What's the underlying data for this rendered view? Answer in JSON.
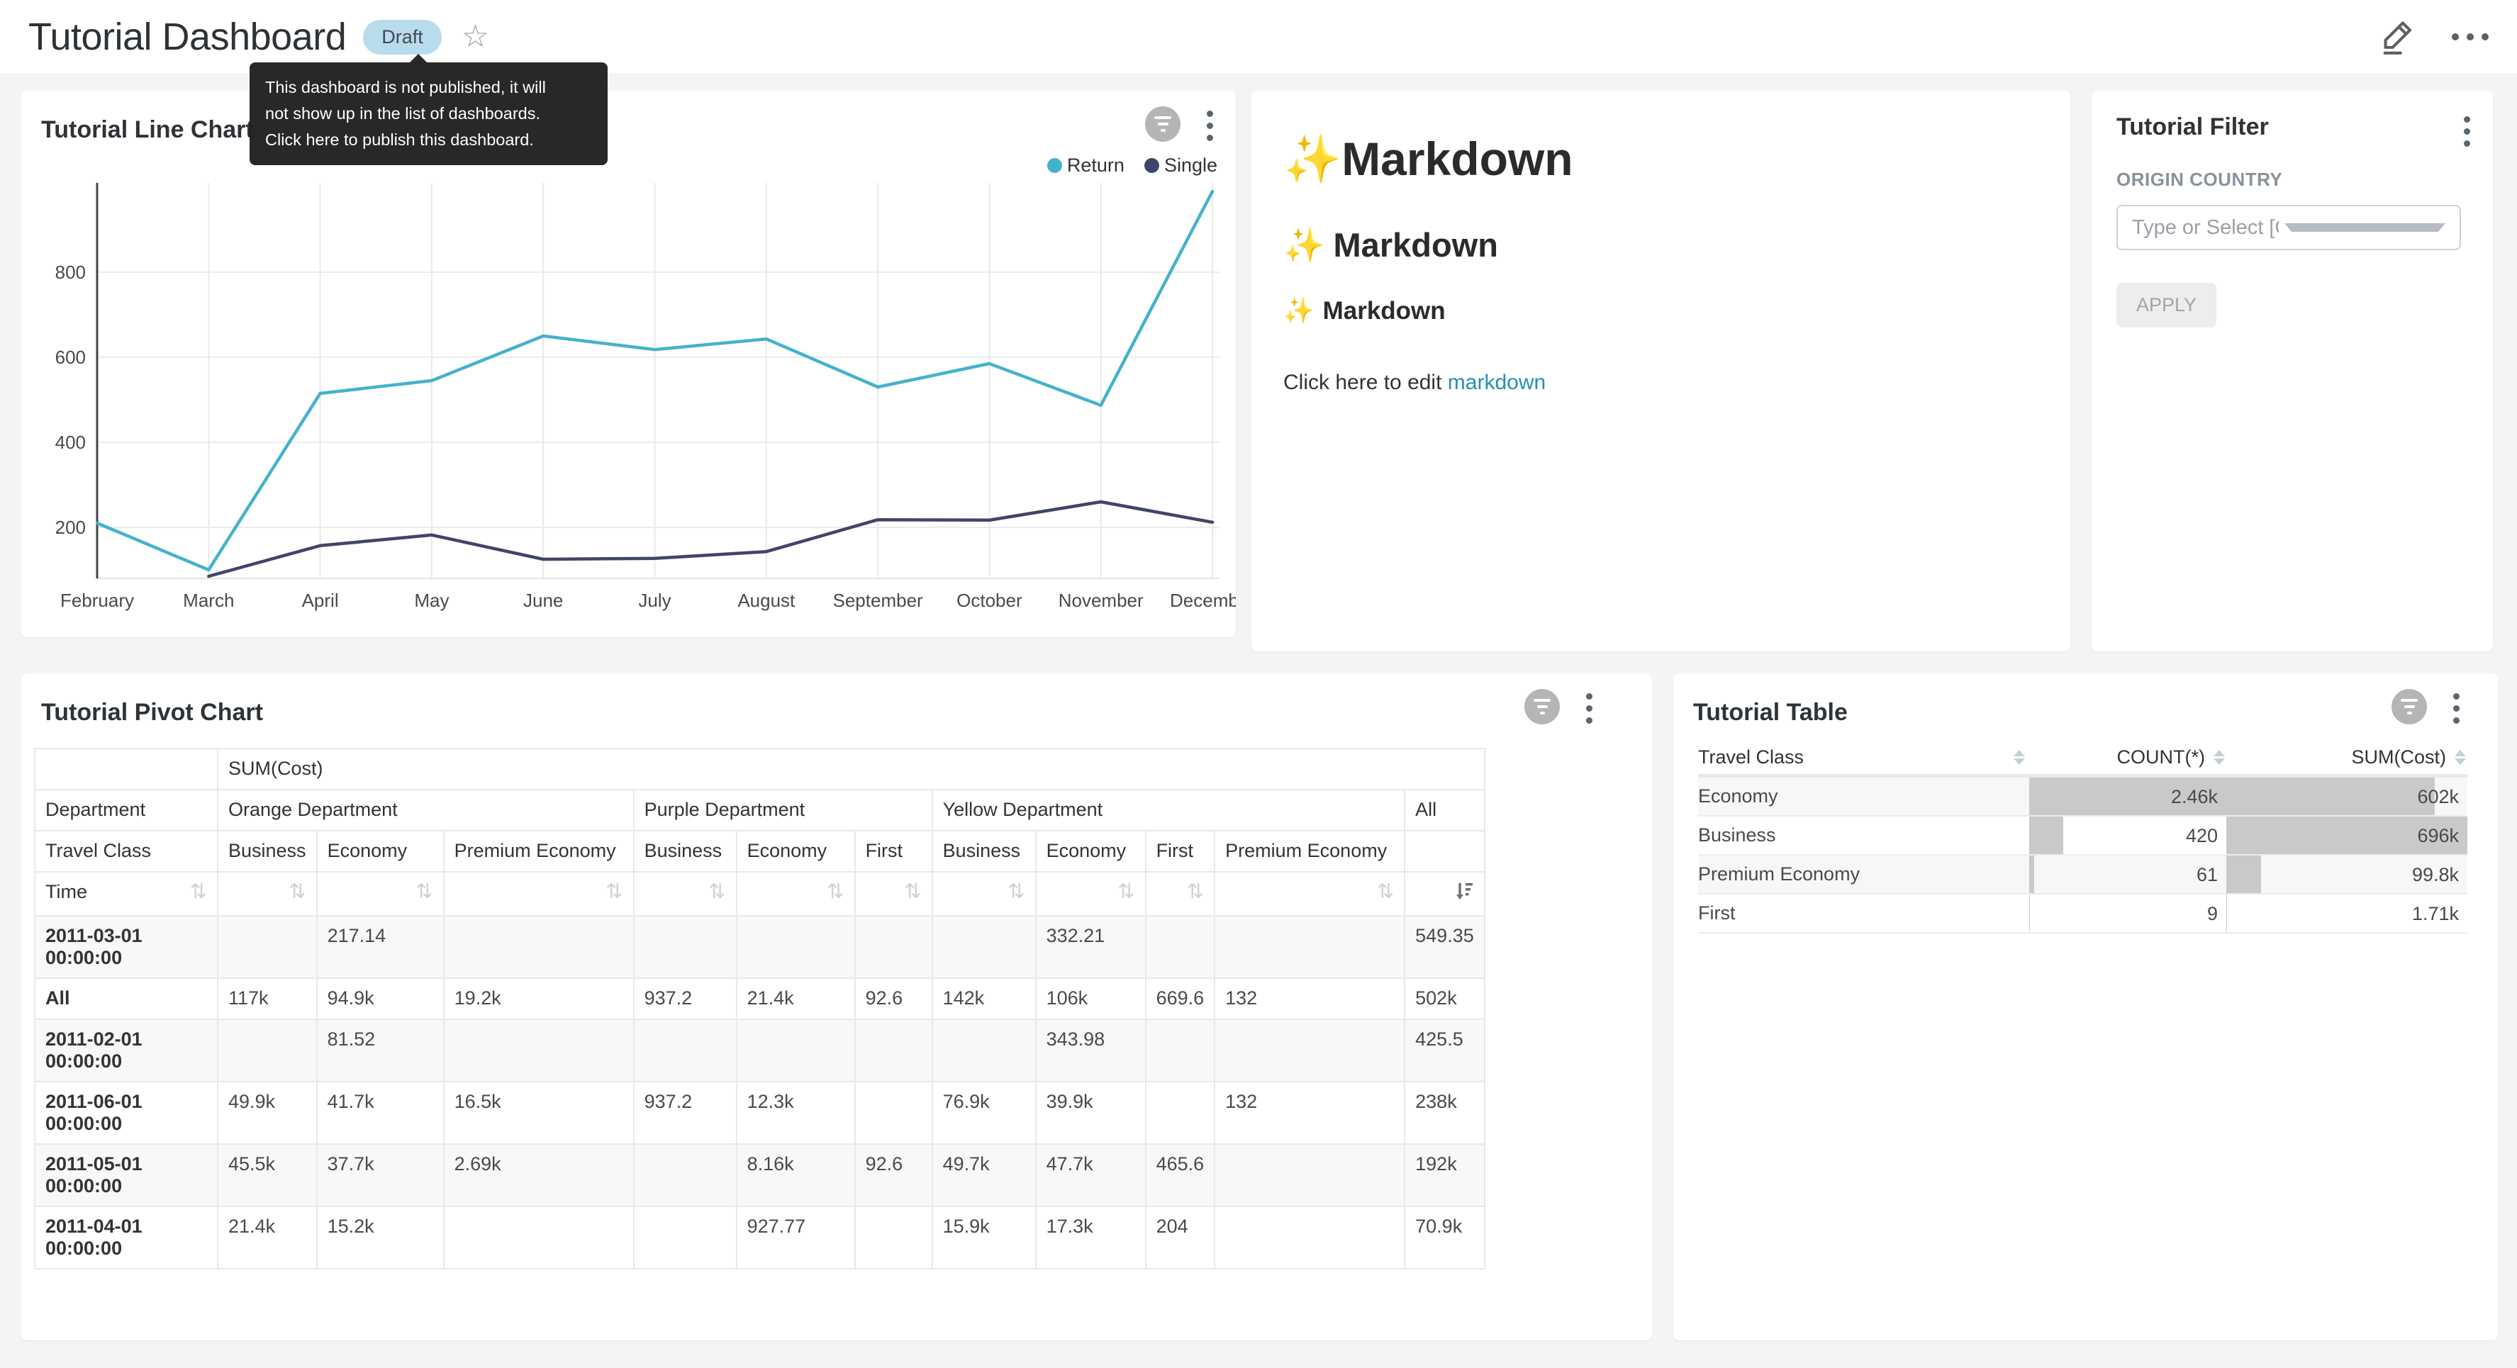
{
  "header": {
    "title": "Tutorial Dashboard",
    "badge": "Draft",
    "star_icon": "☆",
    "tooltip_lines": [
      "This dashboard is not published, it will",
      "not show up in the list of dashboards.",
      "Click here to publish this dashboard."
    ]
  },
  "line_chart_panel": {
    "title": "Tutorial Line Chart"
  },
  "chart_data": {
    "type": "line",
    "title": "Tutorial Line Chart",
    "x": [
      "February",
      "March",
      "April",
      "May",
      "June",
      "July",
      "August",
      "September",
      "October",
      "November",
      "December"
    ],
    "series": [
      {
        "name": "Return",
        "color": "#45b2cc",
        "values": [
          210,
          100,
          515,
          545,
          650,
          618,
          643,
          530,
          585,
          487,
          990
        ]
      },
      {
        "name": "Single",
        "color": "#41446a",
        "values": [
          null,
          85,
          157,
          182,
          125,
          127,
          143,
          218,
          217,
          260,
          212
        ]
      }
    ],
    "yticks": [
      200,
      400,
      600,
      800
    ],
    "ylim": [
      80,
      1010
    ],
    "grid": true,
    "legend_position": "top-right"
  },
  "markdown_panel": {
    "sparkle": "✨",
    "h1": "Markdown",
    "h2": "Markdown",
    "h3": "Markdown",
    "cta_prefix": "Click here to edit ",
    "cta_link_text": "markdown"
  },
  "filter_panel": {
    "title": "Tutorial Filter",
    "field_label": "ORIGIN COUNTRY",
    "select_placeholder": "Type or Select [Origin Country]",
    "apply_label": "APPLY"
  },
  "pivot_panel": {
    "title": "Tutorial Pivot Chart",
    "metric_label": "SUM(Cost)",
    "dept_row_label": "Department",
    "class_row_label": "Travel Class",
    "time_row_label": "Time",
    "all_label": "All",
    "sort_icon": "⇅",
    "groups": [
      {
        "label": "Orange Department",
        "classes": [
          "Business",
          "Economy",
          "Premium Economy"
        ]
      },
      {
        "label": "Purple Department",
        "classes": [
          "Business",
          "Economy",
          "First"
        ]
      },
      {
        "label": "Yellow Department",
        "classes": [
          "Business",
          "Economy",
          "First",
          "Premium Economy"
        ]
      }
    ],
    "rows": [
      {
        "label": "2011-03-01 00:00:00",
        "values": [
          "",
          "217.14",
          "",
          "",
          "",
          "",
          "",
          "332.21",
          "",
          "",
          "549.35"
        ]
      },
      {
        "label": "All",
        "values": [
          "117k",
          "94.9k",
          "19.2k",
          "937.2",
          "21.4k",
          "92.6",
          "142k",
          "106k",
          "669.6",
          "132",
          "502k"
        ]
      },
      {
        "label": "2011-02-01 00:00:00",
        "values": [
          "",
          "81.52",
          "",
          "",
          "",
          "",
          "",
          "343.98",
          "",
          "",
          "425.5"
        ]
      },
      {
        "label": "2011-06-01 00:00:00",
        "values": [
          "49.9k",
          "41.7k",
          "16.5k",
          "937.2",
          "12.3k",
          "",
          "76.9k",
          "39.9k",
          "",
          "132",
          "238k"
        ]
      },
      {
        "label": "2011-05-01 00:00:00",
        "values": [
          "45.5k",
          "37.7k",
          "2.69k",
          "",
          "8.16k",
          "92.6",
          "49.7k",
          "47.7k",
          "465.6",
          "",
          "192k"
        ]
      },
      {
        "label": "2011-04-01 00:00:00",
        "values": [
          "21.4k",
          "15.2k",
          "",
          "",
          "927.77",
          "",
          "15.9k",
          "17.3k",
          "204",
          "",
          "70.9k"
        ]
      }
    ]
  },
  "table_panel": {
    "title": "Tutorial Table",
    "columns": [
      "Travel Class",
      "COUNT(*)",
      "SUM(Cost)"
    ],
    "rows": [
      {
        "travel_class": "Economy",
        "count": "2.46k",
        "sum": "602k",
        "count_bar": 1,
        "sum_bar": 0.865
      },
      {
        "travel_class": "Business",
        "count": "420",
        "sum": "696k",
        "count_bar": 0.171,
        "sum_bar": 1
      },
      {
        "travel_class": "Premium Economy",
        "count": "61",
        "sum": "99.8k",
        "count_bar": 0.025,
        "sum_bar": 0.143
      },
      {
        "travel_class": "First",
        "count": "9",
        "sum": "1.71k",
        "count_bar": 0.004,
        "sum_bar": 0.003
      }
    ]
  }
}
